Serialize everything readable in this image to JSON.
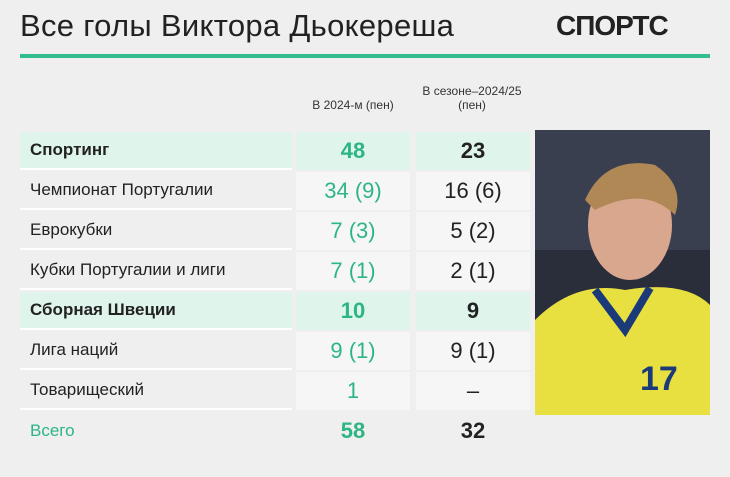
{
  "header": {
    "title": "Все голы Виктора Дьокереша",
    "logo": "СПОРТС"
  },
  "table": {
    "columns": [
      "В 2024-м (пен)",
      [
        "В сезоне–2024/25",
        "(пен)"
      ]
    ],
    "rows": [
      {
        "label": "Спортинг",
        "values": [
          "48",
          "23"
        ],
        "highlight": true
      },
      {
        "label": "Чемпионат Португалии",
        "values": [
          "34 (9)",
          "16 (6)"
        ]
      },
      {
        "label": "Еврокубки",
        "values": [
          "7 (3)",
          "5 (2)"
        ]
      },
      {
        "label": "Кубки Португалии и лиги",
        "values": [
          "7 (1)",
          "2 (1)"
        ]
      },
      {
        "label": "Сборная Швеции",
        "values": [
          "10",
          "9"
        ],
        "highlight": true
      },
      {
        "label": "Лига наций",
        "values": [
          "9 (1)",
          "9 (1)"
        ]
      },
      {
        "label": "Товарищеский",
        "values": [
          "1",
          "–"
        ]
      },
      {
        "label": "Всего",
        "values": [
          "58",
          "32"
        ],
        "total": true
      }
    ]
  }
}
